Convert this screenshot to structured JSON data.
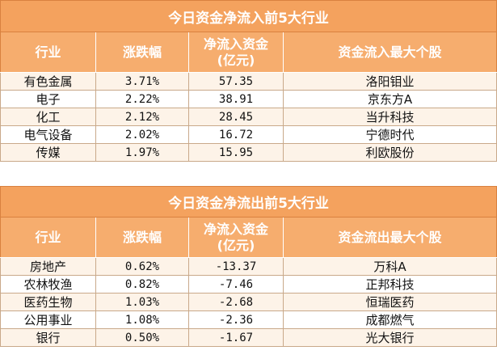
{
  "inflow": {
    "title": "今日资金净流入前5大行业",
    "headers": {
      "industry": "行业",
      "change": "涨跌幅",
      "net_flow_line1": "净流入资金",
      "net_flow_line2": "(亿元)",
      "top_stock": "资金流入最大个股"
    },
    "rows": [
      {
        "industry": "有色金属",
        "change": "3.71%",
        "net_flow": "57.35",
        "top_stock": "洛阳钼业"
      },
      {
        "industry": "电子",
        "change": "2.22%",
        "net_flow": "38.91",
        "top_stock": "京东方A"
      },
      {
        "industry": "化工",
        "change": "2.12%",
        "net_flow": "28.45",
        "top_stock": "当升科技"
      },
      {
        "industry": "电气设备",
        "change": "2.02%",
        "net_flow": "16.72",
        "top_stock": "宁德时代"
      },
      {
        "industry": "传媒",
        "change": "1.97%",
        "net_flow": "15.95",
        "top_stock": "利欧股份"
      }
    ]
  },
  "outflow": {
    "title": "今日资金净流出前5大行业",
    "headers": {
      "industry": "行业",
      "change": "涨跌幅",
      "net_flow_line1": "净流入资金",
      "net_flow_line2": "(亿元)",
      "top_stock": "资金流出最大个股"
    },
    "rows": [
      {
        "industry": "房地产",
        "change": "0.62%",
        "net_flow": "-13.37",
        "top_stock": "万科A"
      },
      {
        "industry": "农林牧渔",
        "change": "0.82%",
        "net_flow": "-7.46",
        "top_stock": "正邦科技"
      },
      {
        "industry": "医药生物",
        "change": "1.03%",
        "net_flow": "-2.68",
        "top_stock": "恒瑞医药"
      },
      {
        "industry": "公用事业",
        "change": "1.08%",
        "net_flow": "-2.36",
        "top_stock": "成都燃气"
      },
      {
        "industry": "银行",
        "change": "0.50%",
        "net_flow": "-1.67",
        "top_stock": "光大银行"
      }
    ]
  }
}
